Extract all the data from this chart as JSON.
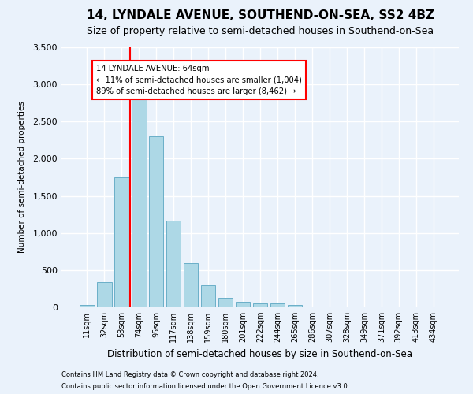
{
  "title": "14, LYNDALE AVENUE, SOUTHEND-ON-SEA, SS2 4BZ",
  "subtitle": "Size of property relative to semi-detached houses in Southend-on-Sea",
  "xlabel": "Distribution of semi-detached houses by size in Southend-on-Sea",
  "ylabel": "Number of semi-detached properties",
  "footnote1": "Contains HM Land Registry data © Crown copyright and database right 2024.",
  "footnote2": "Contains public sector information licensed under the Open Government Licence v3.0.",
  "bar_labels": [
    "11sqm",
    "32sqm",
    "53sqm",
    "74sqm",
    "95sqm",
    "117sqm",
    "138sqm",
    "159sqm",
    "180sqm",
    "201sqm",
    "222sqm",
    "244sqm",
    "265sqm",
    "286sqm",
    "307sqm",
    "328sqm",
    "349sqm",
    "371sqm",
    "392sqm",
    "413sqm",
    "434sqm"
  ],
  "bar_values": [
    30,
    340,
    1750,
    2920,
    2300,
    1165,
    595,
    300,
    130,
    70,
    55,
    55,
    30,
    0,
    0,
    0,
    0,
    0,
    0,
    0,
    0
  ],
  "bar_color": "#add8e6",
  "bar_edge_color": "#6aafc8",
  "vline_x": 2.5,
  "vline_color": "red",
  "annotation_text": "14 LYNDALE AVENUE: 64sqm\n← 11% of semi-detached houses are smaller (1,004)\n89% of semi-detached houses are larger (8,462) →",
  "annotation_box_color": "white",
  "annotation_box_edge_color": "red",
  "ylim": [
    0,
    3500
  ],
  "background_color": "#eaf2fb",
  "grid_color": "white",
  "title_fontsize": 11,
  "subtitle_fontsize": 9
}
